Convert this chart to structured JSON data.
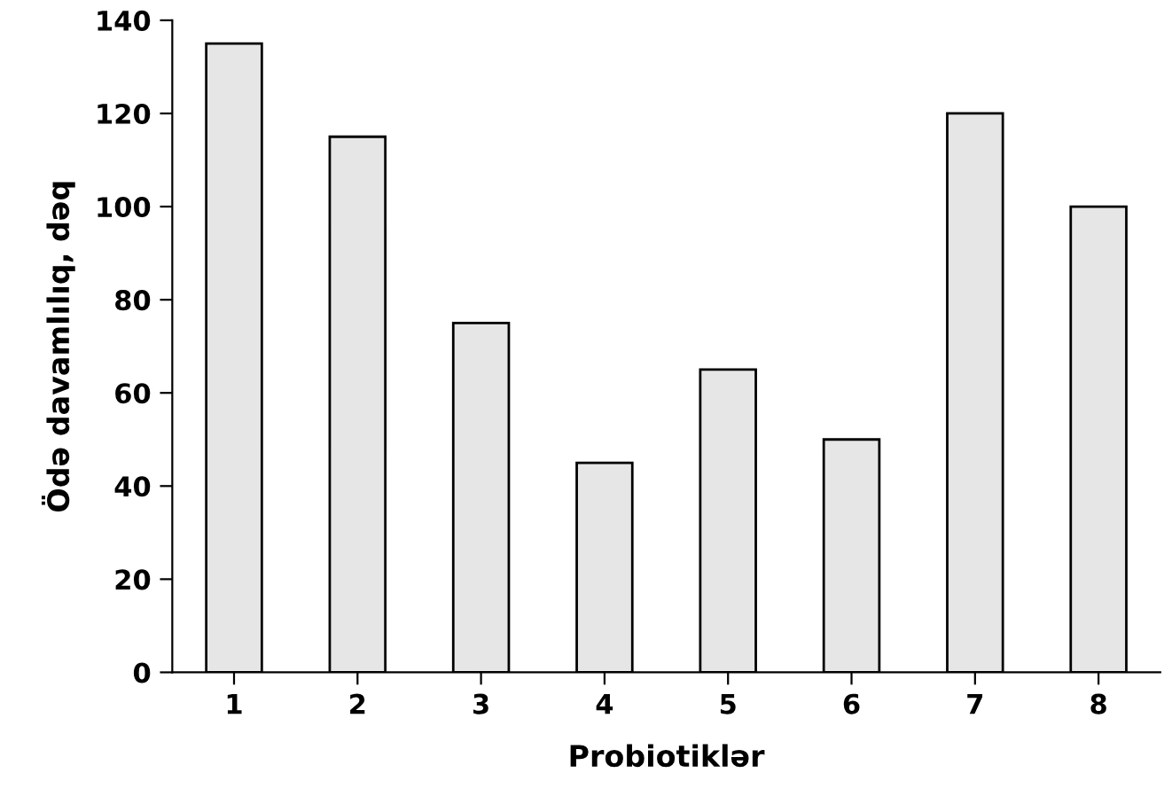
{
  "chart_data": {
    "type": "bar",
    "xlabel": "Probiotiklər",
    "ylabel": "Ödə davamlılıq, dəq",
    "categories": [
      "1",
      "2",
      "3",
      "4",
      "5",
      "6",
      "7",
      "8"
    ],
    "values": [
      135,
      115,
      75,
      45,
      65,
      50,
      120,
      100
    ],
    "color": "#e6e6e6",
    "ylim": [
      0,
      140
    ],
    "yticks": [
      0,
      20,
      40,
      60,
      80,
      100,
      120,
      140
    ],
    "grid": false,
    "legend": false
  }
}
